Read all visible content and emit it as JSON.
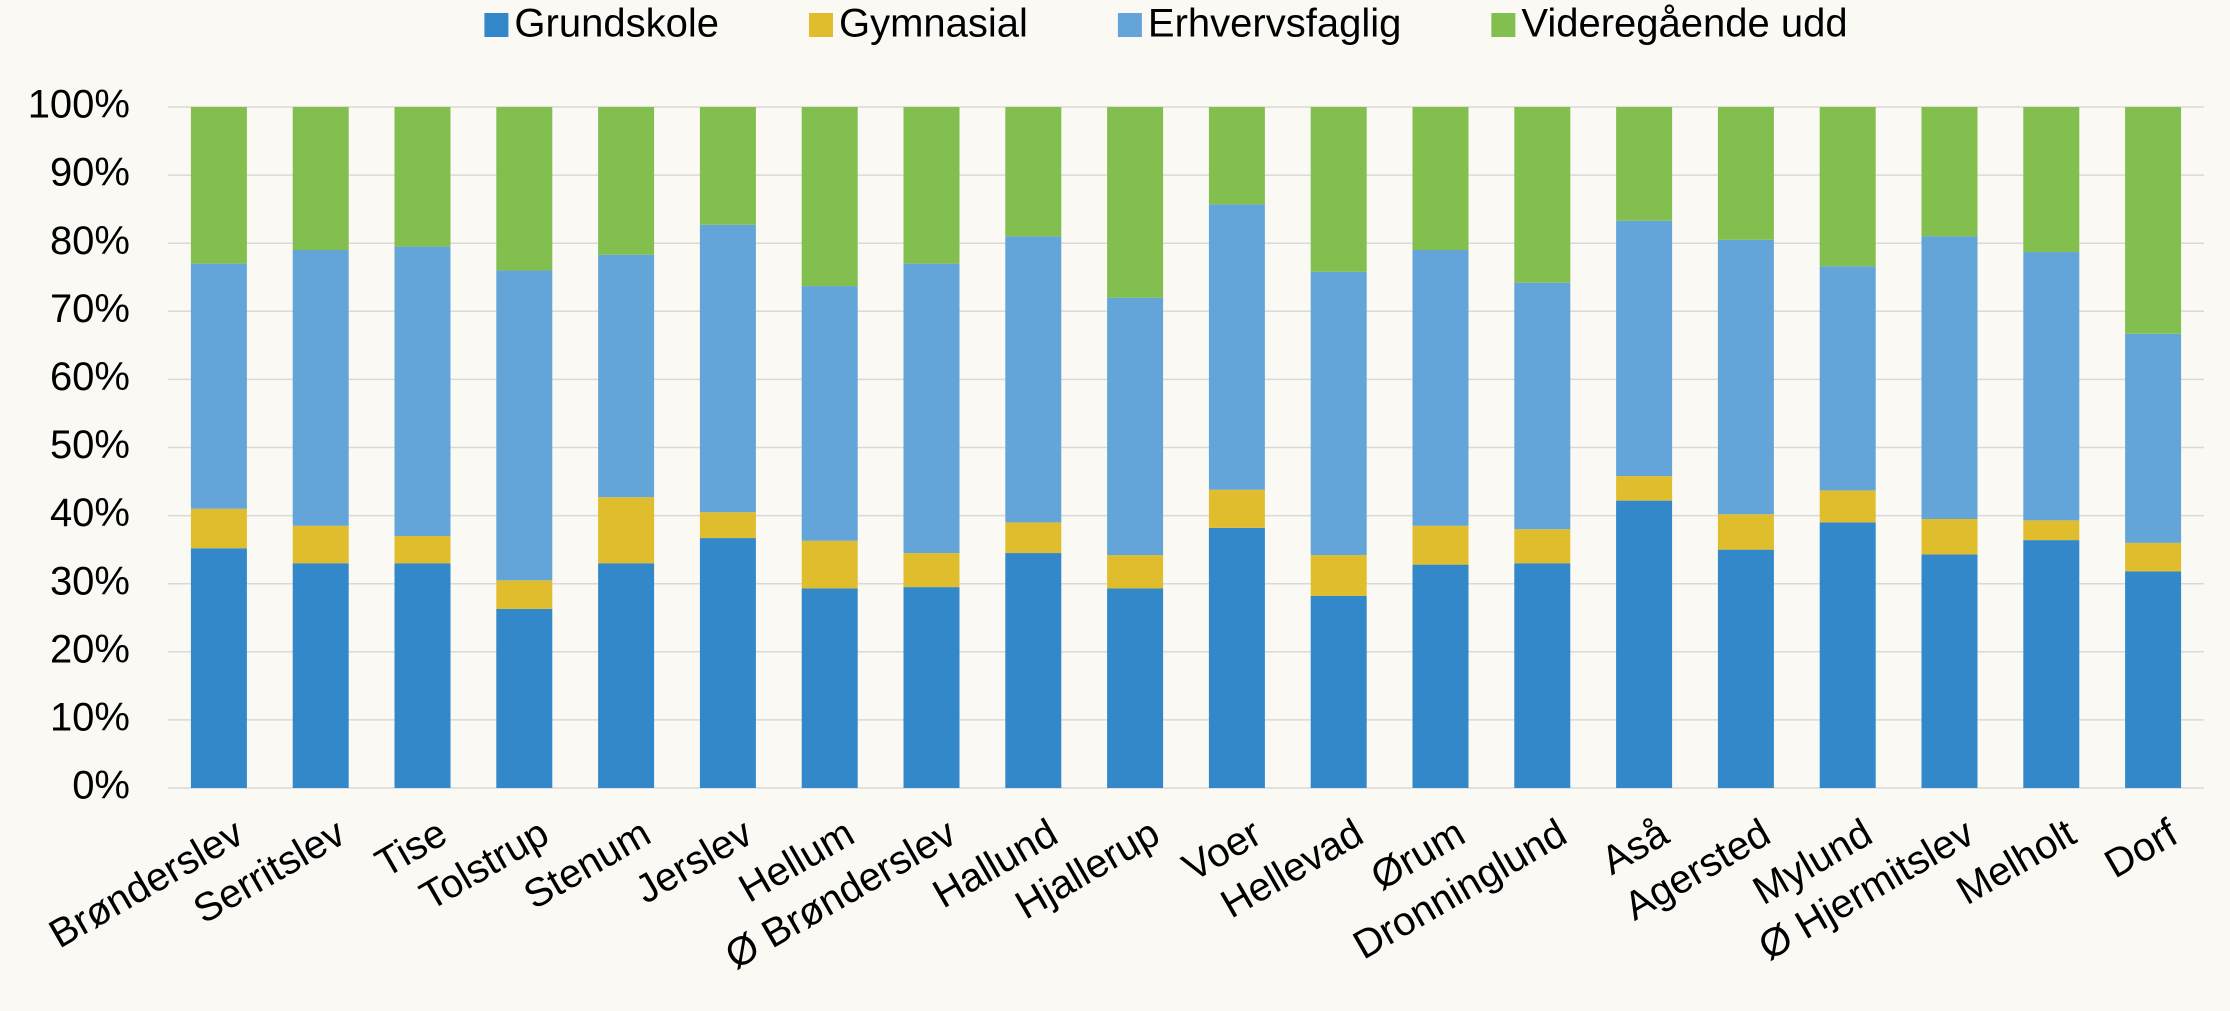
{
  "chart_data": {
    "type": "stacked_bar",
    "categories": [
      "Brønderslev",
      "Serritslev",
      "Tise",
      "Tolstrup",
      "Stenum",
      "Jerslev",
      "Hellum",
      "Ø Brønderslev",
      "Hallund",
      "Hjallerup",
      "Voer",
      "Hellevad",
      "Ørum",
      "Dronninglund",
      "Aså",
      "Agersted",
      "Mylund",
      "Ø Hjermitslev",
      "Melholt",
      "Dorf"
    ],
    "series": [
      {
        "name": "Grundskole",
        "color": "#3288c9",
        "values": [
          35.2,
          33,
          33,
          26.3,
          33,
          36.7,
          29.3,
          29.5,
          34.5,
          29.3,
          38.2,
          28.2,
          32.8,
          33,
          42.2,
          35,
          39,
          34.3,
          36.4,
          31.8
        ]
      },
      {
        "name": "Gymnasial",
        "color": "#e0bd2d",
        "values": [
          5.8,
          5.5,
          4,
          4.2,
          9.7,
          3.8,
          7,
          5,
          4.5,
          4.9,
          5.6,
          6,
          5.7,
          5,
          3.6,
          5.2,
          4.7,
          5.2,
          2.9,
          4.2
        ]
      },
      {
        "name": "Erhvervsfaglig",
        "color": "#64a5d9",
        "values": [
          36,
          40.5,
          42.5,
          45.5,
          35.6,
          42.2,
          37.4,
          42.5,
          42,
          37.8,
          41.9,
          41.6,
          40.5,
          36.2,
          37.5,
          40.3,
          32.9,
          41.5,
          39.4,
          30.7
        ]
      },
      {
        "name": "Videregående udd",
        "color": "#82bf4f",
        "values": [
          23,
          21,
          20.5,
          24,
          21.7,
          17.3,
          26.3,
          23,
          19,
          28,
          14.3,
          24.2,
          21,
          25.8,
          16.7,
          19.5,
          23.4,
          19,
          21.3,
          33.3
        ]
      }
    ],
    "ylim": [
      0,
      100
    ],
    "yticks": [
      {
        "value": 0,
        "label": "0%"
      },
      {
        "value": 10,
        "label": "10%"
      },
      {
        "value": 20,
        "label": "20%"
      },
      {
        "value": 30,
        "label": "30%"
      },
      {
        "value": 40,
        "label": "40%"
      },
      {
        "value": 50,
        "label": "50%"
      },
      {
        "value": 60,
        "label": "60%"
      },
      {
        "value": 70,
        "label": "70%"
      },
      {
        "value": 80,
        "label": "80%"
      },
      {
        "value": 90,
        "label": "90%"
      },
      {
        "value": 100,
        "label": "100%"
      }
    ],
    "grid": true,
    "legend": "top"
  }
}
